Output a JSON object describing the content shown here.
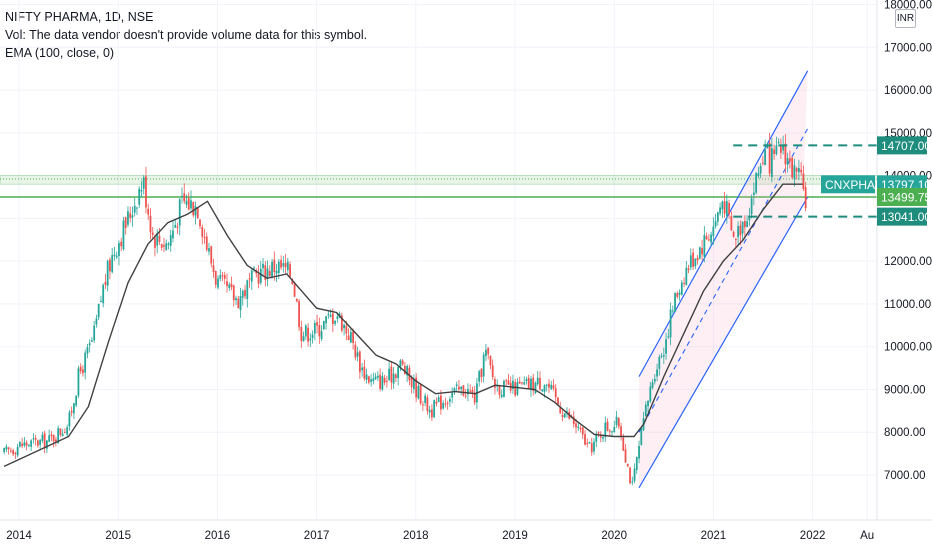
{
  "header": {
    "title": "NIFTY PHARMA, 1D, NSE",
    "vol_text": "Vol: The data vendor doesn't provide volume data for this symbol.",
    "ema_text": "EMA (100, close, 0)"
  },
  "currency": "INR",
  "colors": {
    "up": "#26a69a",
    "down": "#ef5350",
    "ema": "#404040",
    "support_zone": "#4caf50",
    "channel": "#2962ff",
    "level": "#1e8d7d",
    "symbol_badge": "#26a69a",
    "current_price": "#4caf50"
  },
  "symbol_label": "CNXPHARMA",
  "chart_data": {
    "type": "line",
    "title": "NIFTY PHARMA, 1D, NSE",
    "xlabel": "",
    "ylabel": "",
    "x_tick_labels": [
      "2014",
      "2015",
      "2016",
      "2017",
      "2018",
      "2019",
      "2020",
      "2021",
      "2022",
      "Au"
    ],
    "y_tick_labels": [
      "18000.00",
      "17000.00",
      "16000.00",
      "15000.00",
      "14000.00",
      "12000.00",
      "11000.00",
      "10000.00",
      "9000.00",
      "8000.00",
      "7000.00"
    ],
    "ylim": [
      6200,
      18000
    ],
    "xlim": [
      2013.85,
      2022.6
    ],
    "grid": true,
    "series": [
      {
        "values": [
          [
            2013.85,
            7500
          ],
          [
            2014.0,
            7700
          ],
          [
            2014.3,
            7800
          ],
          [
            2014.5,
            8200
          ],
          [
            2014.6,
            9300
          ],
          [
            2014.75,
            10200
          ],
          [
            2014.85,
            11400
          ],
          [
            2014.95,
            12200
          ],
          [
            2015.1,
            13000
          ],
          [
            2015.25,
            13900
          ],
          [
            2015.35,
            12600
          ],
          [
            2015.5,
            12400
          ],
          [
            2015.65,
            13400
          ],
          [
            2015.8,
            13300
          ],
          [
            2015.9,
            12300
          ],
          [
            2016.0,
            11500
          ],
          [
            2016.2,
            11100
          ],
          [
            2016.4,
            11700
          ],
          [
            2016.6,
            11900
          ],
          [
            2016.75,
            11700
          ],
          [
            2016.85,
            10300
          ],
          [
            2017.0,
            10400
          ],
          [
            2017.2,
            10800
          ],
          [
            2017.35,
            10200
          ],
          [
            2017.45,
            9500
          ],
          [
            2017.55,
            9200
          ],
          [
            2017.7,
            9200
          ],
          [
            2017.85,
            9600
          ],
          [
            2017.95,
            9200
          ],
          [
            2018.15,
            8500
          ],
          [
            2018.35,
            8900
          ],
          [
            2018.5,
            9000
          ],
          [
            2018.6,
            8800
          ],
          [
            2018.7,
            9900
          ],
          [
            2018.8,
            9100
          ],
          [
            2018.95,
            9000
          ],
          [
            2019.15,
            9100
          ],
          [
            2019.3,
            9200
          ],
          [
            2019.45,
            8600
          ],
          [
            2019.6,
            8200
          ],
          [
            2019.75,
            7600
          ],
          [
            2019.9,
            8100
          ],
          [
            2020.05,
            8200
          ],
          [
            2020.18,
            6700
          ],
          [
            2020.3,
            8300
          ],
          [
            2020.4,
            9400
          ],
          [
            2020.5,
            10000
          ],
          [
            2020.6,
            11000
          ],
          [
            2020.7,
            11700
          ],
          [
            2020.8,
            12100
          ],
          [
            2021.0,
            12800
          ],
          [
            2021.1,
            13500
          ],
          [
            2021.2,
            12500
          ],
          [
            2021.35,
            13200
          ],
          [
            2021.5,
            14500
          ],
          [
            2021.6,
            14300
          ],
          [
            2021.7,
            14700
          ],
          [
            2021.8,
            14100
          ],
          [
            2021.88,
            13800
          ],
          [
            2021.93,
            13500
          ]
        ]
      },
      {
        "name": "EMA (100, close, 0)",
        "values": [
          [
            2013.85,
            7200
          ],
          [
            2014.5,
            7900
          ],
          [
            2014.7,
            8600
          ],
          [
            2014.9,
            10100
          ],
          [
            2015.1,
            11500
          ],
          [
            2015.3,
            12400
          ],
          [
            2015.5,
            12900
          ],
          [
            2015.7,
            13100
          ],
          [
            2015.9,
            13400
          ],
          [
            2016.1,
            12600
          ],
          [
            2016.3,
            11900
          ],
          [
            2016.5,
            11600
          ],
          [
            2016.7,
            11700
          ],
          [
            2016.85,
            11300
          ],
          [
            2017.0,
            10900
          ],
          [
            2017.2,
            10800
          ],
          [
            2017.4,
            10300
          ],
          [
            2017.6,
            9800
          ],
          [
            2017.8,
            9600
          ],
          [
            2018.0,
            9200
          ],
          [
            2018.2,
            8900
          ],
          [
            2018.4,
            8950
          ],
          [
            2018.6,
            8900
          ],
          [
            2018.8,
            9100
          ],
          [
            2019.0,
            9050
          ],
          [
            2019.2,
            9000
          ],
          [
            2019.4,
            8700
          ],
          [
            2019.6,
            8300
          ],
          [
            2019.8,
            7950
          ],
          [
            2020.0,
            7900
          ],
          [
            2020.2,
            7900
          ],
          [
            2020.3,
            8200
          ],
          [
            2020.5,
            9300
          ],
          [
            2020.7,
            10300
          ],
          [
            2020.9,
            11300
          ],
          [
            2021.1,
            12000
          ],
          [
            2021.3,
            12500
          ],
          [
            2021.5,
            13200
          ],
          [
            2021.7,
            13800
          ],
          [
            2021.9,
            13800
          ]
        ]
      }
    ],
    "annotations": {
      "support_zone": [
        13800,
        14000
      ],
      "support_line": 13500,
      "levels": [
        "14707.00",
        "13041.00"
      ],
      "price_labels": [
        "13797.10",
        "13499.75"
      ]
    }
  }
}
